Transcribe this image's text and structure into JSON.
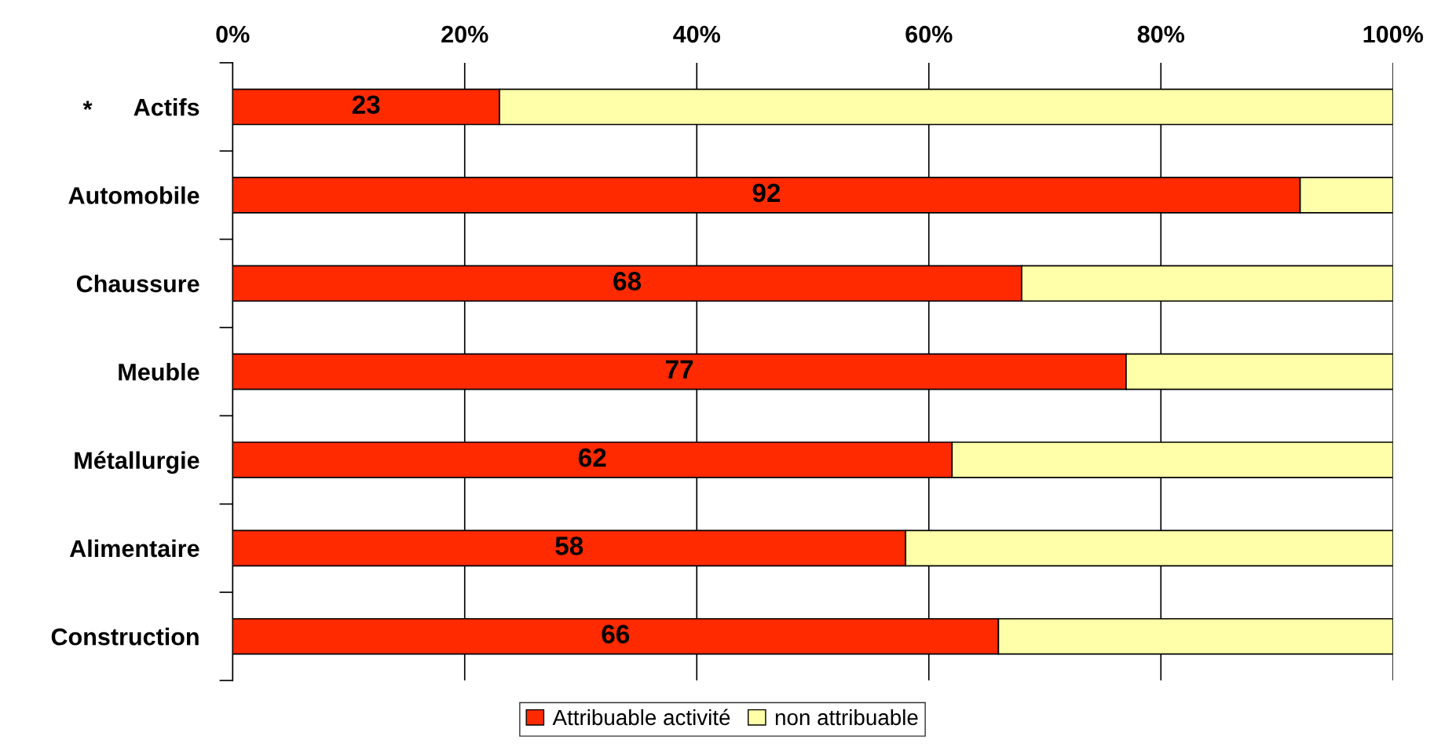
{
  "chart_data": {
    "type": "bar",
    "orientation": "horizontal",
    "stacked": true,
    "categories": [
      "Actifs",
      "Automobile",
      "Chaussure",
      "Meuble",
      "Métallurgie",
      "Alimentaire",
      "Construction"
    ],
    "series": [
      {
        "name": "Attribuable activité",
        "color": "#ff2a00",
        "values": [
          23,
          92,
          68,
          77,
          62,
          58,
          66
        ],
        "value_labels": [
          "23",
          "92",
          "68",
          "77",
          "62",
          "58",
          "66"
        ]
      },
      {
        "name": "non attribuable",
        "color": "#ffffaa",
        "values": [
          77,
          8,
          32,
          23,
          38,
          42,
          34
        ]
      }
    ],
    "xlim": [
      0,
      100
    ],
    "xticks": [
      {
        "value": 0,
        "label": "0%"
      },
      {
        "value": 20,
        "label": "20%"
      },
      {
        "value": 40,
        "label": "40%"
      },
      {
        "value": 60,
        "label": "60%"
      },
      {
        "value": 80,
        "label": "80%"
      },
      {
        "value": 100,
        "label": "100%"
      }
    ],
    "grid": "x",
    "legend": "bottom",
    "annotations": [
      "*"
    ]
  }
}
